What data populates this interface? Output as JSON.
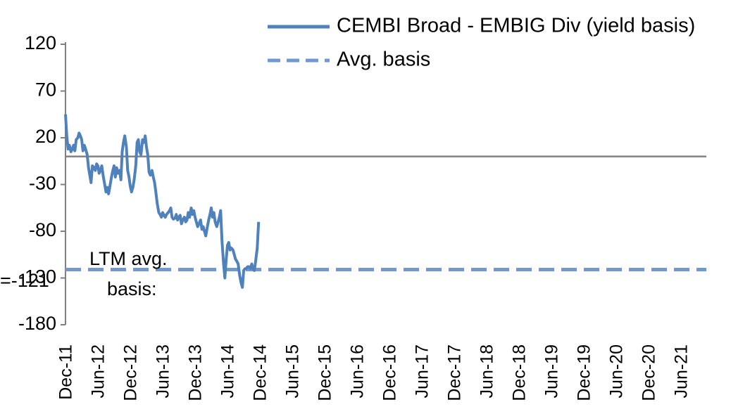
{
  "chart_data": {
    "type": "line",
    "title": "",
    "xlabel": "",
    "ylabel": "",
    "ylim": [
      -180,
      120
    ],
    "yticks": [
      120,
      70,
      20,
      -30,
      -80,
      -130,
      -180
    ],
    "x_tick_labels": [
      "Dec-11",
      "Jun-12",
      "Dec-12",
      "Jun-13",
      "Dec-13",
      "Jun-14",
      "Dec-14",
      "Jun-15",
      "Dec-15",
      "Jun-16",
      "Dec-16",
      "Jun-17",
      "Dec-17",
      "Jun-18",
      "Dec-18",
      "Jun-19",
      "Dec-19",
      "Jun-20",
      "Dec-20",
      "Jun-21"
    ],
    "legend": {
      "position": "top-right",
      "entries": [
        {
          "label": "CEMBI Broad - EMBIG Div (yield basis)",
          "style": "solid"
        },
        {
          "label": "Avg. basis",
          "style": "dashed"
        }
      ]
    },
    "series": [
      {
        "name": "CEMBI Broad - EMBIG Div (yield basis)",
        "color": "#4f81bd",
        "style": "solid",
        "points": [
          [
            0.0,
            45
          ],
          [
            0.04,
            22
          ],
          [
            0.08,
            8
          ],
          [
            0.12,
            12
          ],
          [
            0.17,
            5
          ],
          [
            0.21,
            8
          ],
          [
            0.25,
            12
          ],
          [
            0.29,
            6
          ],
          [
            0.33,
            18
          ],
          [
            0.38,
            20
          ],
          [
            0.42,
            25
          ],
          [
            0.46,
            22
          ],
          [
            0.5,
            18
          ],
          [
            0.54,
            6
          ],
          [
            0.58,
            12
          ],
          [
            0.62,
            8
          ],
          [
            0.67,
            2
          ],
          [
            0.71,
            -12
          ],
          [
            0.75,
            -20
          ],
          [
            0.79,
            -28
          ],
          [
            0.83,
            -10
          ],
          [
            0.88,
            -12
          ],
          [
            0.92,
            -15
          ],
          [
            0.96,
            -8
          ],
          [
            1.0,
            -10
          ],
          [
            1.04,
            -18
          ],
          [
            1.08,
            -15
          ],
          [
            1.12,
            -10
          ],
          [
            1.17,
            -22
          ],
          [
            1.21,
            -30
          ],
          [
            1.25,
            -38
          ],
          [
            1.29,
            -33
          ],
          [
            1.33,
            -40
          ],
          [
            1.38,
            -30
          ],
          [
            1.42,
            -22
          ],
          [
            1.46,
            -15
          ],
          [
            1.5,
            -10
          ],
          [
            1.54,
            -22
          ],
          [
            1.58,
            -12
          ],
          [
            1.62,
            -18
          ],
          [
            1.67,
            -15
          ],
          [
            1.71,
            -25
          ],
          [
            1.75,
            5
          ],
          [
            1.79,
            15
          ],
          [
            1.83,
            22
          ],
          [
            1.88,
            10
          ],
          [
            1.92,
            -15
          ],
          [
            1.96,
            -22
          ],
          [
            2.0,
            -32
          ],
          [
            2.04,
            -38
          ],
          [
            2.08,
            -33
          ],
          [
            2.12,
            -25
          ],
          [
            2.17,
            -10
          ],
          [
            2.21,
            15
          ],
          [
            2.25,
            18
          ],
          [
            2.29,
            5
          ],
          [
            2.33,
            2
          ],
          [
            2.38,
            18
          ],
          [
            2.42,
            15
          ],
          [
            2.46,
            22
          ],
          [
            2.5,
            10
          ],
          [
            2.54,
            2
          ],
          [
            2.58,
            -17
          ],
          [
            2.62,
            -20
          ],
          [
            2.67,
            -15
          ],
          [
            2.71,
            -22
          ],
          [
            2.75,
            -28
          ],
          [
            2.79,
            -38
          ],
          [
            2.83,
            -50
          ],
          [
            2.88,
            -60
          ],
          [
            2.92,
            -62
          ],
          [
            2.96,
            -65
          ],
          [
            3.0,
            -60
          ],
          [
            3.04,
            -63
          ],
          [
            3.08,
            -65
          ],
          [
            3.12,
            -62
          ],
          [
            3.17,
            -60
          ],
          [
            3.21,
            -58
          ],
          [
            3.25,
            -55
          ],
          [
            3.29,
            -65
          ],
          [
            3.33,
            -67
          ],
          [
            3.38,
            -66
          ],
          [
            3.42,
            -62
          ],
          [
            3.46,
            -68
          ],
          [
            3.5,
            -65
          ],
          [
            3.54,
            -63
          ],
          [
            3.58,
            -72
          ],
          [
            3.62,
            -68
          ],
          [
            3.67,
            -65
          ],
          [
            3.71,
            -70
          ],
          [
            3.75,
            -68
          ],
          [
            3.79,
            -60
          ],
          [
            3.83,
            -65
          ],
          [
            3.88,
            -55
          ],
          [
            3.92,
            -62
          ],
          [
            3.96,
            -58
          ],
          [
            4.0,
            -65
          ],
          [
            4.04,
            -70
          ],
          [
            4.08,
            -75
          ],
          [
            4.12,
            -72
          ],
          [
            4.17,
            -68
          ],
          [
            4.21,
            -78
          ],
          [
            4.25,
            -75
          ],
          [
            4.29,
            -80
          ],
          [
            4.33,
            -85
          ],
          [
            4.38,
            -75
          ],
          [
            4.42,
            -68
          ],
          [
            4.46,
            -62
          ],
          [
            4.5,
            -55
          ],
          [
            4.54,
            -65
          ],
          [
            4.58,
            -60
          ],
          [
            4.62,
            -70
          ],
          [
            4.67,
            -75
          ],
          [
            4.71,
            -70
          ],
          [
            4.75,
            -65
          ],
          [
            4.79,
            -58
          ],
          [
            4.83,
            -90
          ],
          [
            4.88,
            -115
          ],
          [
            4.92,
            -130
          ],
          [
            4.96,
            -110
          ],
          [
            5.0,
            -95
          ],
          [
            5.04,
            -92
          ],
          [
            5.08,
            -100
          ],
          [
            5.12,
            -98
          ],
          [
            5.17,
            -100
          ],
          [
            5.21,
            -105
          ],
          [
            5.25,
            -110
          ],
          [
            5.29,
            -112
          ],
          [
            5.33,
            -115
          ],
          [
            5.38,
            -128
          ],
          [
            5.42,
            -135
          ],
          [
            5.46,
            -140
          ],
          [
            5.5,
            -122
          ],
          [
            5.54,
            -120
          ],
          [
            5.58,
            -120
          ],
          [
            5.62,
            -118
          ],
          [
            5.67,
            -118
          ],
          [
            5.71,
            -120
          ],
          [
            5.75,
            -115
          ],
          [
            5.79,
            -120
          ],
          [
            5.83,
            -122
          ],
          [
            5.87,
            -112
          ],
          [
            5.92,
            -98
          ],
          [
            5.96,
            -70
          ]
        ]
      }
    ],
    "reference_lines": [
      {
        "name": "zero-line",
        "y": 0,
        "style": "solid",
        "color": "#808080"
      },
      {
        "name": "Avg. basis",
        "y": -121,
        "style": "dashed",
        "color": "#6e99d6"
      }
    ],
    "annotations": [
      {
        "text_lines": [
          "LTM avg.",
          "basis:"
        ]
      },
      {
        "text": "=-121"
      }
    ]
  }
}
